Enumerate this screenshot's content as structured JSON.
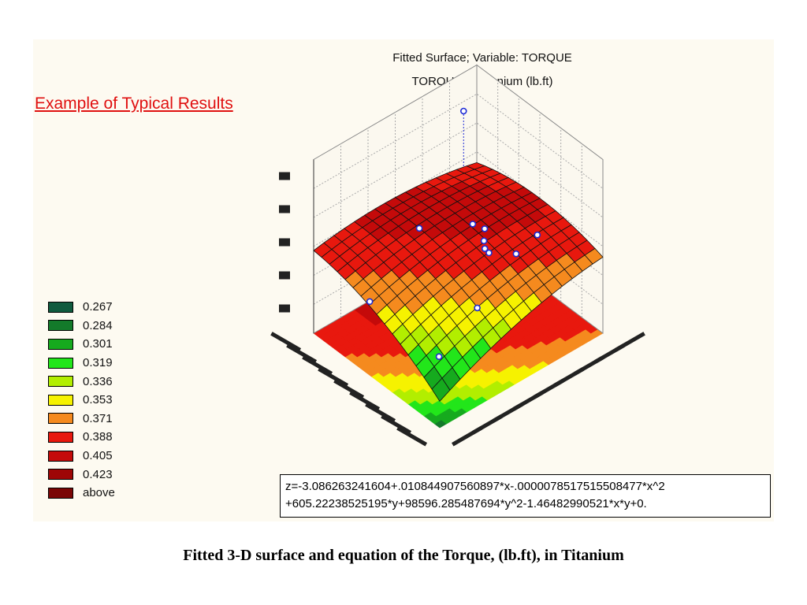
{
  "chart_data": {
    "type": "surface3d",
    "title": "Fitted Surface; Variable: TORQUE",
    "subtitle": "TORQUE in Titanium (lb.ft)",
    "zlabel": "",
    "grid": true,
    "legend_placement": "left",
    "legend": {
      "entries": [
        "0.267",
        "0.284",
        "0.301",
        "0.319",
        "0.336",
        "0.353",
        "0.371",
        "0.388",
        "0.405",
        "0.423",
        "above"
      ],
      "colors": [
        "#0f5a3e",
        "#137a2a",
        "#16aa1e",
        "#22e61a",
        "#b2ee00",
        "#f6f200",
        "#f58a1e",
        "#e8180e",
        "#c40a0a",
        "#9e0606",
        "#7a0505"
      ]
    },
    "equation_lines": [
      "z=-3.086263241604+.010844907560897*x-.0000078517515508477*x^2",
      "+605.22238525195*y+98596.285487694*y^2-1.46482990521*x*y+0."
    ]
  },
  "annotation": "Example of Typical Results",
  "caption": "Fitted 3-D surface and equation of the Torque, (lb.ft), in Titanium"
}
